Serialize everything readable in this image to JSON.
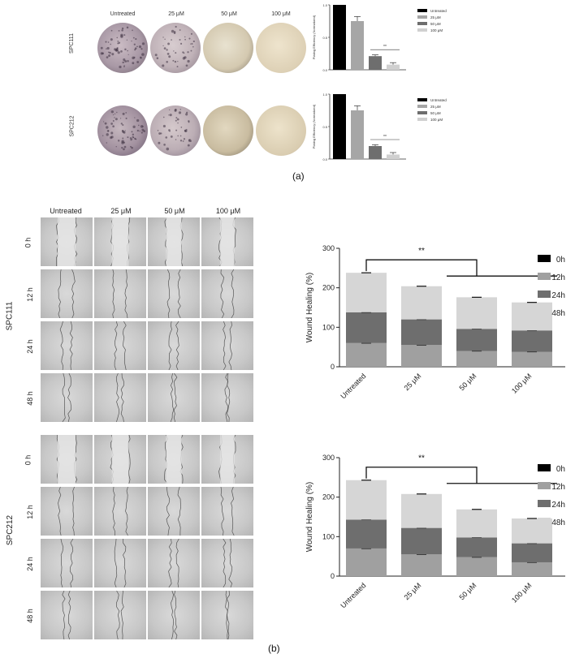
{
  "panel_a": {
    "column_labels": [
      "Untreated",
      "25 μM",
      "50 μM",
      "100 μM"
    ],
    "row_labels": [
      "SPC111",
      "SPC212"
    ],
    "caption": "(a)"
  },
  "panel_b": {
    "column_labels": [
      "Untreated",
      "25 μM",
      "50 μM",
      "100 μM"
    ],
    "time_labels": [
      "0 h",
      "12 h",
      "24 h",
      "48 h"
    ],
    "line_labels": [
      "SPC111",
      "SPC212"
    ],
    "caption": "(b)"
  },
  "chart_data": [
    {
      "type": "bar",
      "cell_line": "SPC111",
      "categories": [
        "Untreated",
        "25 μM",
        "50 μM",
        "100 μM"
      ],
      "values": [
        1.0,
        0.75,
        0.21,
        0.08
      ],
      "errors": [
        0.0,
        0.07,
        0.02,
        0.03
      ],
      "colors": [
        "#000000",
        "#a6a6a6",
        "#6e6e6e",
        "#d0d0d0"
      ],
      "ylabel": "Plating Efficiency (Normalized)",
      "ylim": [
        0,
        1.0
      ],
      "yticks": [
        "0.0",
        "0.5",
        "1.0"
      ],
      "legend": [
        "Untreated",
        "25 μM",
        "50 μM",
        "100 μM"
      ],
      "significance": "**"
    },
    {
      "type": "bar",
      "cell_line": "SPC212",
      "categories": [
        "Untreated",
        "25 μM",
        "50 μM",
        "100 μM"
      ],
      "values": [
        1.0,
        0.75,
        0.2,
        0.07
      ],
      "errors": [
        0.0,
        0.07,
        0.02,
        0.03
      ],
      "colors": [
        "#000000",
        "#a6a6a6",
        "#6e6e6e",
        "#d0d0d0"
      ],
      "ylabel": "Plating Efficiency (Normalized)",
      "ylim": [
        0,
        1.0
      ],
      "yticks": [
        "0.0",
        "0.5",
        "1.0"
      ],
      "legend": [
        "Untreated",
        "25 μM",
        "50 μM",
        "100 μM"
      ],
      "significance": "**"
    },
    {
      "type": "bar",
      "stacked": true,
      "cell_line": "SPC111",
      "categories": [
        "Untreated",
        "25 μM",
        "50 μM",
        "100 μM"
      ],
      "series": [
        {
          "name": "0h",
          "values": [
            0,
            0,
            0,
            0
          ],
          "color": "#000000"
        },
        {
          "name": "12h",
          "values": [
            60,
            55,
            40,
            38
          ],
          "color": "#a0a0a0"
        },
        {
          "name": "24h",
          "values": [
            78,
            65,
            56,
            54
          ],
          "color": "#6e6e6e"
        },
        {
          "name": "48h",
          "values": [
            100,
            84,
            80,
            71
          ],
          "color": "#d6d6d6"
        }
      ],
      "ylabel": "Wound  Healing (%)",
      "ylim": [
        0,
        300
      ],
      "yticks": [
        "0",
        "100",
        "200",
        "300"
      ],
      "significance": "**"
    },
    {
      "type": "bar",
      "stacked": true,
      "cell_line": "SPC212",
      "categories": [
        "Untreated",
        "25 μM",
        "50 μM",
        "100 μM"
      ],
      "series": [
        {
          "name": "0h",
          "values": [
            0,
            0,
            0,
            0
          ],
          "color": "#000000"
        },
        {
          "name": "12h",
          "values": [
            70,
            55,
            48,
            35
          ],
          "color": "#a0a0a0"
        },
        {
          "name": "24h",
          "values": [
            73,
            67,
            50,
            48
          ],
          "color": "#6e6e6e"
        },
        {
          "name": "48h",
          "values": [
            100,
            86,
            71,
            63
          ],
          "color": "#d6d6d6"
        }
      ],
      "ylabel": "Wound  Healing (%)",
      "ylim": [
        0,
        300
      ],
      "yticks": [
        "0",
        "100",
        "200",
        "300"
      ],
      "significance": "**"
    }
  ]
}
